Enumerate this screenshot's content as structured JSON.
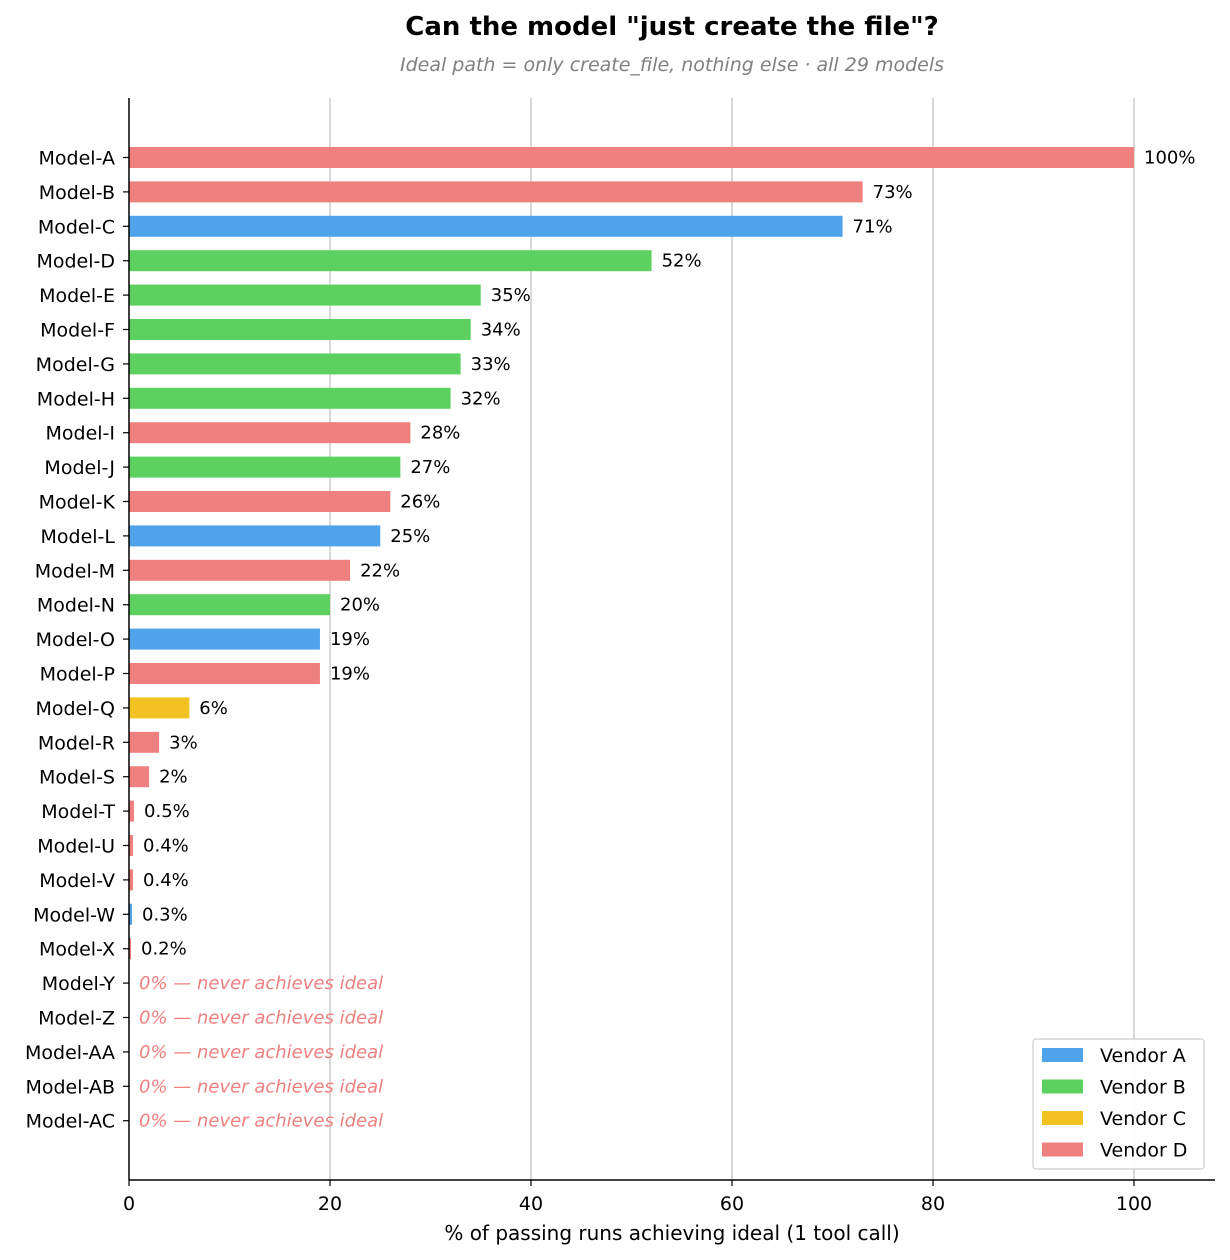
{
  "chart_data": {
    "type": "bar",
    "orientation": "horizontal",
    "title": "Can the model \"just create the file\"?",
    "subtitle": "Ideal path = only create_file, nothing else · all 29 models",
    "xlabel": "% of passing runs achieving ideal (1 tool call)",
    "ylabel": "",
    "xlim": [
      0,
      108
    ],
    "xticks": [
      0,
      20,
      40,
      60,
      80,
      100
    ],
    "grid": "vertical",
    "legend_position": "bottom-right",
    "zero_label": "0% — never achieves ideal",
    "legend": [
      {
        "name": "Vendor A",
        "color": "#4fa3eb"
      },
      {
        "name": "Vendor B",
        "color": "#5cd15f"
      },
      {
        "name": "Vendor C",
        "color": "#f2c220"
      },
      {
        "name": "Vendor D",
        "color": "#ef8080"
      }
    ],
    "bars": [
      {
        "model": "Model-A",
        "value": 100,
        "label": "100%",
        "vendor": "Vendor D"
      },
      {
        "model": "Model-B",
        "value": 73,
        "label": "73%",
        "vendor": "Vendor D"
      },
      {
        "model": "Model-C",
        "value": 71,
        "label": "71%",
        "vendor": "Vendor A"
      },
      {
        "model": "Model-D",
        "value": 52,
        "label": "52%",
        "vendor": "Vendor B"
      },
      {
        "model": "Model-E",
        "value": 35,
        "label": "35%",
        "vendor": "Vendor B"
      },
      {
        "model": "Model-F",
        "value": 34,
        "label": "34%",
        "vendor": "Vendor B"
      },
      {
        "model": "Model-G",
        "value": 33,
        "label": "33%",
        "vendor": "Vendor B"
      },
      {
        "model": "Model-H",
        "value": 32,
        "label": "32%",
        "vendor": "Vendor B"
      },
      {
        "model": "Model-I",
        "value": 28,
        "label": "28%",
        "vendor": "Vendor D"
      },
      {
        "model": "Model-J",
        "value": 27,
        "label": "27%",
        "vendor": "Vendor B"
      },
      {
        "model": "Model-K",
        "value": 26,
        "label": "26%",
        "vendor": "Vendor D"
      },
      {
        "model": "Model-L",
        "value": 25,
        "label": "25%",
        "vendor": "Vendor A"
      },
      {
        "model": "Model-M",
        "value": 22,
        "label": "22%",
        "vendor": "Vendor D"
      },
      {
        "model": "Model-N",
        "value": 20,
        "label": "20%",
        "vendor": "Vendor B"
      },
      {
        "model": "Model-O",
        "value": 19,
        "label": "19%",
        "vendor": "Vendor A"
      },
      {
        "model": "Model-P",
        "value": 19,
        "label": "19%",
        "vendor": "Vendor D"
      },
      {
        "model": "Model-Q",
        "value": 6,
        "label": "6%",
        "vendor": "Vendor C"
      },
      {
        "model": "Model-R",
        "value": 3,
        "label": "3%",
        "vendor": "Vendor D"
      },
      {
        "model": "Model-S",
        "value": 2,
        "label": "2%",
        "vendor": "Vendor D"
      },
      {
        "model": "Model-T",
        "value": 0.5,
        "label": "0.5%",
        "vendor": "Vendor D"
      },
      {
        "model": "Model-U",
        "value": 0.4,
        "label": "0.4%",
        "vendor": "Vendor D"
      },
      {
        "model": "Model-V",
        "value": 0.4,
        "label": "0.4%",
        "vendor": "Vendor D"
      },
      {
        "model": "Model-W",
        "value": 0.3,
        "label": "0.3%",
        "vendor": "Vendor A"
      },
      {
        "model": "Model-X",
        "value": 0.2,
        "label": "0.2%",
        "vendor": "Vendor D"
      },
      {
        "model": "Model-Y",
        "value": 0,
        "label": "",
        "vendor": "Vendor D"
      },
      {
        "model": "Model-Z",
        "value": 0,
        "label": "",
        "vendor": "Vendor D"
      },
      {
        "model": "Model-AA",
        "value": 0,
        "label": "",
        "vendor": "Vendor D"
      },
      {
        "model": "Model-AB",
        "value": 0,
        "label": "",
        "vendor": "Vendor D"
      },
      {
        "model": "Model-AC",
        "value": 0,
        "label": "",
        "vendor": "Vendor D"
      }
    ]
  }
}
